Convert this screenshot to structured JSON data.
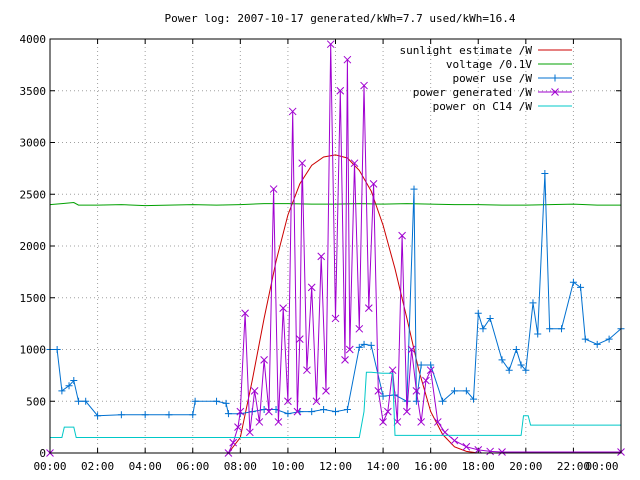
{
  "chart_data": {
    "type": "line",
    "title": "Power log: 2007-10-17 generated/kWh=7.7 used/kWh=16.4",
    "xlabel": "",
    "ylabel": "",
    "xlim": [
      0,
      24
    ],
    "ylim": [
      0,
      4000
    ],
    "grid": true,
    "legend_position": "top-right",
    "x_ticks": [
      0,
      2,
      4,
      6,
      8,
      10,
      12,
      14,
      16,
      18,
      20,
      22,
      24
    ],
    "x_tick_labels": [
      "00:00",
      "02:00",
      "04:00",
      "06:00",
      "08:00",
      "10:00",
      "12:00",
      "14:00",
      "16:00",
      "18:00",
      "20:00",
      "22:00",
      "00:00"
    ],
    "y_ticks": [
      0,
      500,
      1000,
      1500,
      2000,
      2500,
      3000,
      3500,
      4000
    ],
    "y_tick_labels": [
      "0",
      "500",
      "1000",
      "1500",
      "2000",
      "2500",
      "3000",
      "3500",
      "4000"
    ],
    "series": [
      {
        "name": "sunlight estimate /W",
        "color": "#cc0000",
        "marker": "none",
        "x": [
          0,
          7.5,
          8.0,
          8.5,
          9.0,
          9.5,
          10.0,
          10.5,
          11.0,
          11.5,
          12.0,
          12.5,
          13.0,
          13.5,
          14.0,
          14.5,
          15.0,
          15.5,
          16.0,
          16.5,
          17.0,
          17.5,
          18.0,
          24
        ],
        "y": [
          0,
          0,
          150,
          700,
          1300,
          1850,
          2300,
          2600,
          2780,
          2860,
          2880,
          2850,
          2730,
          2530,
          2200,
          1780,
          1300,
          800,
          400,
          180,
          60,
          15,
          0,
          0
        ]
      },
      {
        "name": "voltage /0.1V",
        "color": "#00a000",
        "marker": "none",
        "x": [
          0,
          0.5,
          1.0,
          1.2,
          2.0,
          3.0,
          4.0,
          5.0,
          6.0,
          7.0,
          8.0,
          9.0,
          10.0,
          11.0,
          12.0,
          13.0,
          14.0,
          15.0,
          16.0,
          17.0,
          18.0,
          19.0,
          20.0,
          21.0,
          22.0,
          23.0,
          24.0
        ],
        "y": [
          2400,
          2410,
          2420,
          2395,
          2395,
          2400,
          2390,
          2395,
          2400,
          2395,
          2400,
          2410,
          2410,
          2405,
          2405,
          2410,
          2405,
          2410,
          2405,
          2400,
          2400,
          2395,
          2395,
          2400,
          2405,
          2395,
          2395
        ]
      },
      {
        "name": "power use /W",
        "color": "#0070d0",
        "marker": "plus",
        "x": [
          0,
          0.3,
          0.5,
          0.8,
          1.0,
          1.2,
          1.5,
          2.0,
          3.0,
          4.0,
          5.0,
          6.0,
          6.1,
          7.0,
          7.4,
          7.5,
          8.0,
          8.5,
          9.0,
          9.5,
          10.0,
          10.5,
          11.0,
          11.5,
          12.0,
          12.5,
          13.0,
          13.2,
          13.5,
          14.0,
          14.5,
          15.0,
          15.3,
          15.4,
          15.6,
          16.0,
          16.5,
          17.0,
          17.5,
          17.8,
          18.0,
          18.2,
          18.5,
          19.0,
          19.3,
          19.6,
          19.8,
          20.0,
          20.3,
          20.5,
          20.8,
          21.0,
          21.5,
          22.0,
          22.3,
          22.5,
          23.0,
          23.5,
          24.0
        ],
        "y": [
          1000,
          1000,
          600,
          650,
          700,
          500,
          500,
          360,
          370,
          370,
          370,
          370,
          500,
          500,
          480,
          380,
          380,
          400,
          420,
          420,
          380,
          400,
          400,
          420,
          400,
          420,
          1020,
          1050,
          1040,
          550,
          560,
          500,
          2550,
          500,
          850,
          850,
          500,
          600,
          600,
          520,
          1350,
          1200,
          1300,
          900,
          800,
          1000,
          850,
          800,
          1450,
          1150,
          2700,
          1200,
          1200,
          1650,
          1600,
          1100,
          1050,
          1100,
          1200
        ]
      },
      {
        "name": "power generated /W",
        "color": "#a000d0",
        "marker": "cross",
        "x": [
          0,
          7.5,
          7.7,
          7.9,
          8.0,
          8.2,
          8.4,
          8.6,
          8.8,
          9.0,
          9.2,
          9.4,
          9.6,
          9.8,
          10.0,
          10.2,
          10.4,
          10.5,
          10.6,
          10.8,
          11.0,
          11.2,
          11.4,
          11.6,
          11.8,
          12.0,
          12.2,
          12.4,
          12.5,
          12.6,
          12.8,
          13.0,
          13.2,
          13.4,
          13.6,
          13.8,
          14.0,
          14.2,
          14.4,
          14.6,
          14.8,
          15.0,
          15.2,
          15.4,
          15.6,
          15.8,
          16.0,
          16.3,
          16.6,
          17.0,
          17.5,
          18.0,
          18.5,
          19.0,
          24.0
        ],
        "y": [
          0,
          0,
          100,
          250,
          400,
          1350,
          200,
          600,
          300,
          900,
          400,
          2550,
          300,
          1400,
          500,
          3300,
          400,
          1100,
          2800,
          800,
          1600,
          500,
          1900,
          600,
          3950,
          1300,
          3500,
          900,
          3800,
          1000,
          2800,
          1200,
          3550,
          1400,
          2600,
          600,
          300,
          400,
          800,
          300,
          2100,
          400,
          1000,
          600,
          300,
          700,
          800,
          300,
          200,
          120,
          60,
          30,
          15,
          10,
          10
        ]
      },
      {
        "name": "power on C14 /W",
        "color": "#00c8c8",
        "marker": "none",
        "x": [
          0,
          0.5,
          0.6,
          1.0,
          1.1,
          5.0,
          9.0,
          11.4,
          11.5,
          12.0,
          13.0,
          13.2,
          13.3,
          13.5,
          14.0,
          14.4,
          14.5,
          17.0,
          18.0,
          19.8,
          19.9,
          20.1,
          20.2,
          24.0
        ],
        "y": [
          150,
          150,
          250,
          250,
          150,
          150,
          150,
          150,
          150,
          150,
          150,
          400,
          780,
          780,
          770,
          770,
          170,
          170,
          170,
          170,
          360,
          360,
          270,
          270
        ]
      }
    ]
  }
}
